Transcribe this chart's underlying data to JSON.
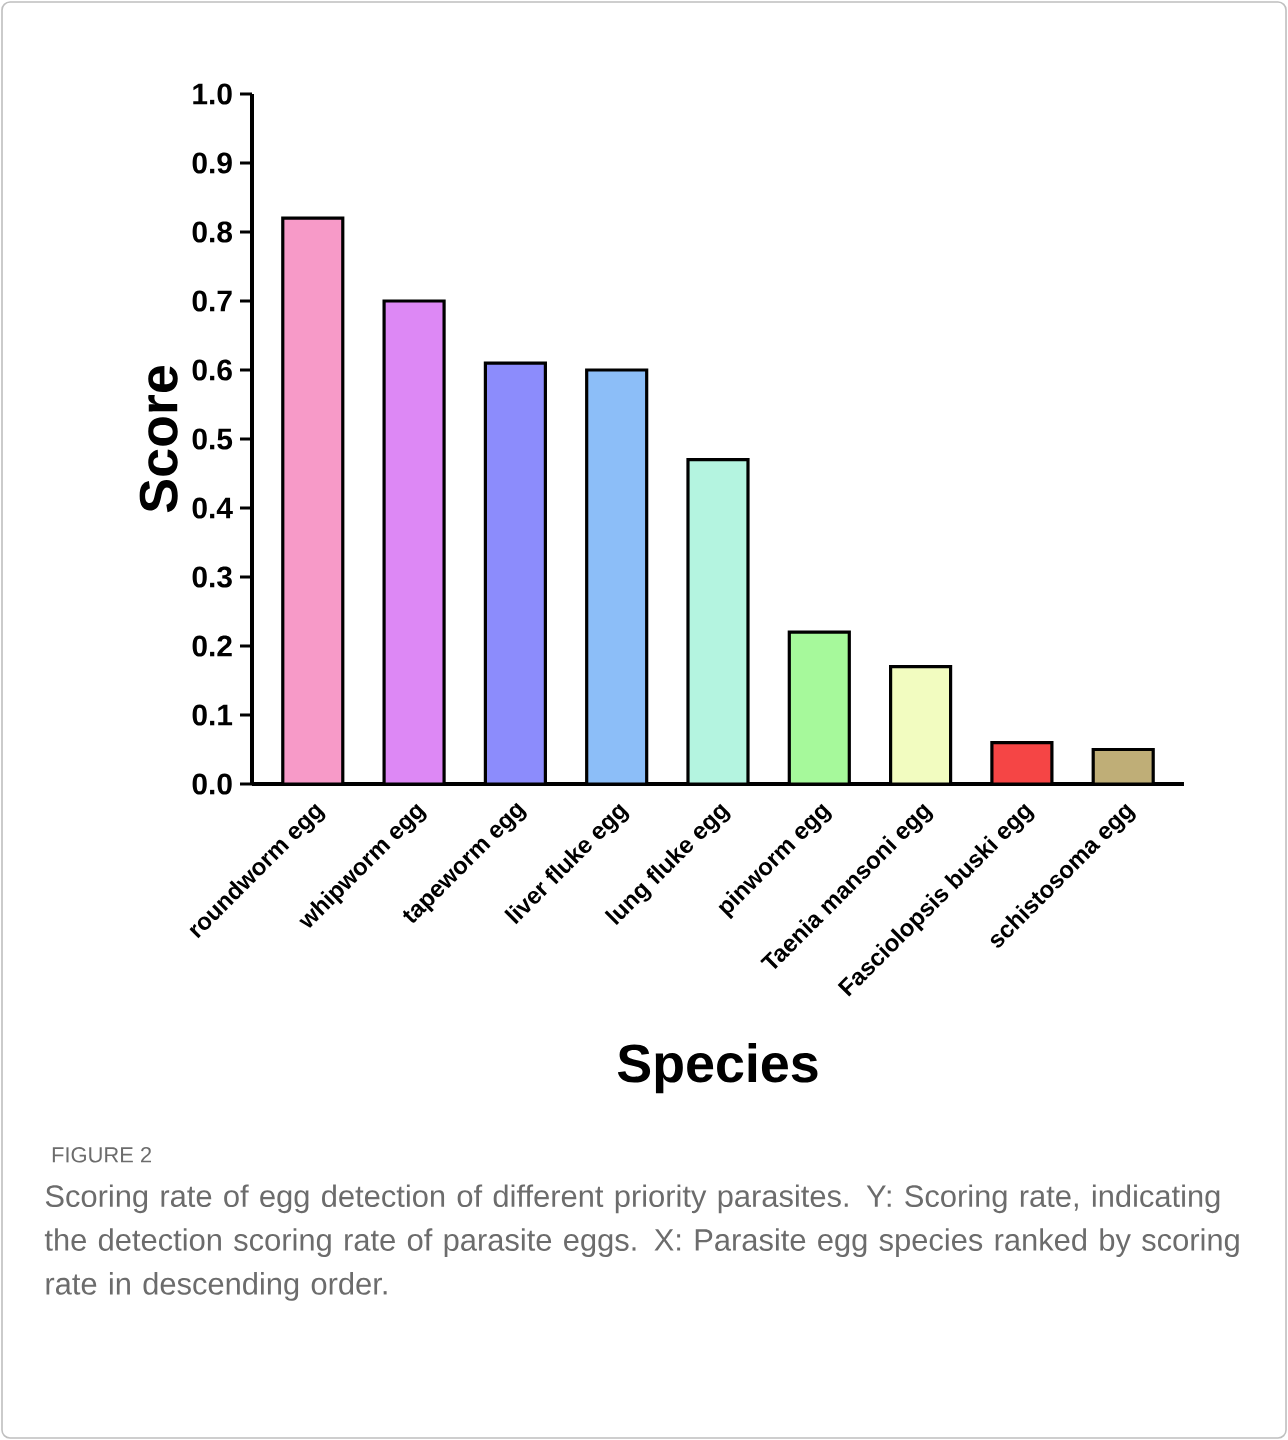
{
  "chart_data": {
    "type": "bar",
    "xlabel": "Species",
    "ylabel": "Score",
    "categories": [
      "roundworm egg",
      "whipworm egg",
      "tapeworm egg",
      "liver fluke egg",
      "lung fluke egg",
      "pinworm egg",
      "Taenia mansoni egg",
      "Fasciolopsis buski egg",
      "schistosoma egg"
    ],
    "values": [
      0.82,
      0.7,
      0.61,
      0.6,
      0.47,
      0.22,
      0.17,
      0.06,
      0.05
    ],
    "colors": [
      "#f79ac8",
      "#dd88f5",
      "#8c8cfc",
      "#8cbef8",
      "#b4f4e0",
      "#a6f99b",
      "#f2fcc0",
      "#f54545",
      "#bfae77"
    ],
    "ylim": [
      0,
      1.0
    ],
    "yticks": [
      {
        "value": 0,
        "label": "0.0"
      },
      {
        "value": 0.1,
        "label": "0.1"
      },
      {
        "value": 0.2,
        "label": "0.2"
      },
      {
        "value": 0.3,
        "label": "0.3"
      },
      {
        "value": 0.4,
        "label": "0.4"
      },
      {
        "value": 0.5,
        "label": "0.5"
      },
      {
        "value": 0.6,
        "label": "0.6"
      },
      {
        "value": 0.7,
        "label": "0.7"
      },
      {
        "value": 0.8,
        "label": "0.8"
      },
      {
        "value": 0.9,
        "label": "0.9"
      },
      {
        "value": 1.0,
        "label": "1.0"
      }
    ],
    "annotations": [
      "FIGURE 2",
      "Scoring rate of egg detection of different priority parasites. Y: Scoring rate, indicating the detection scoring rate of parasite eggs. X: Parasite egg species ranked by scoring rate in descending order."
    ]
  }
}
